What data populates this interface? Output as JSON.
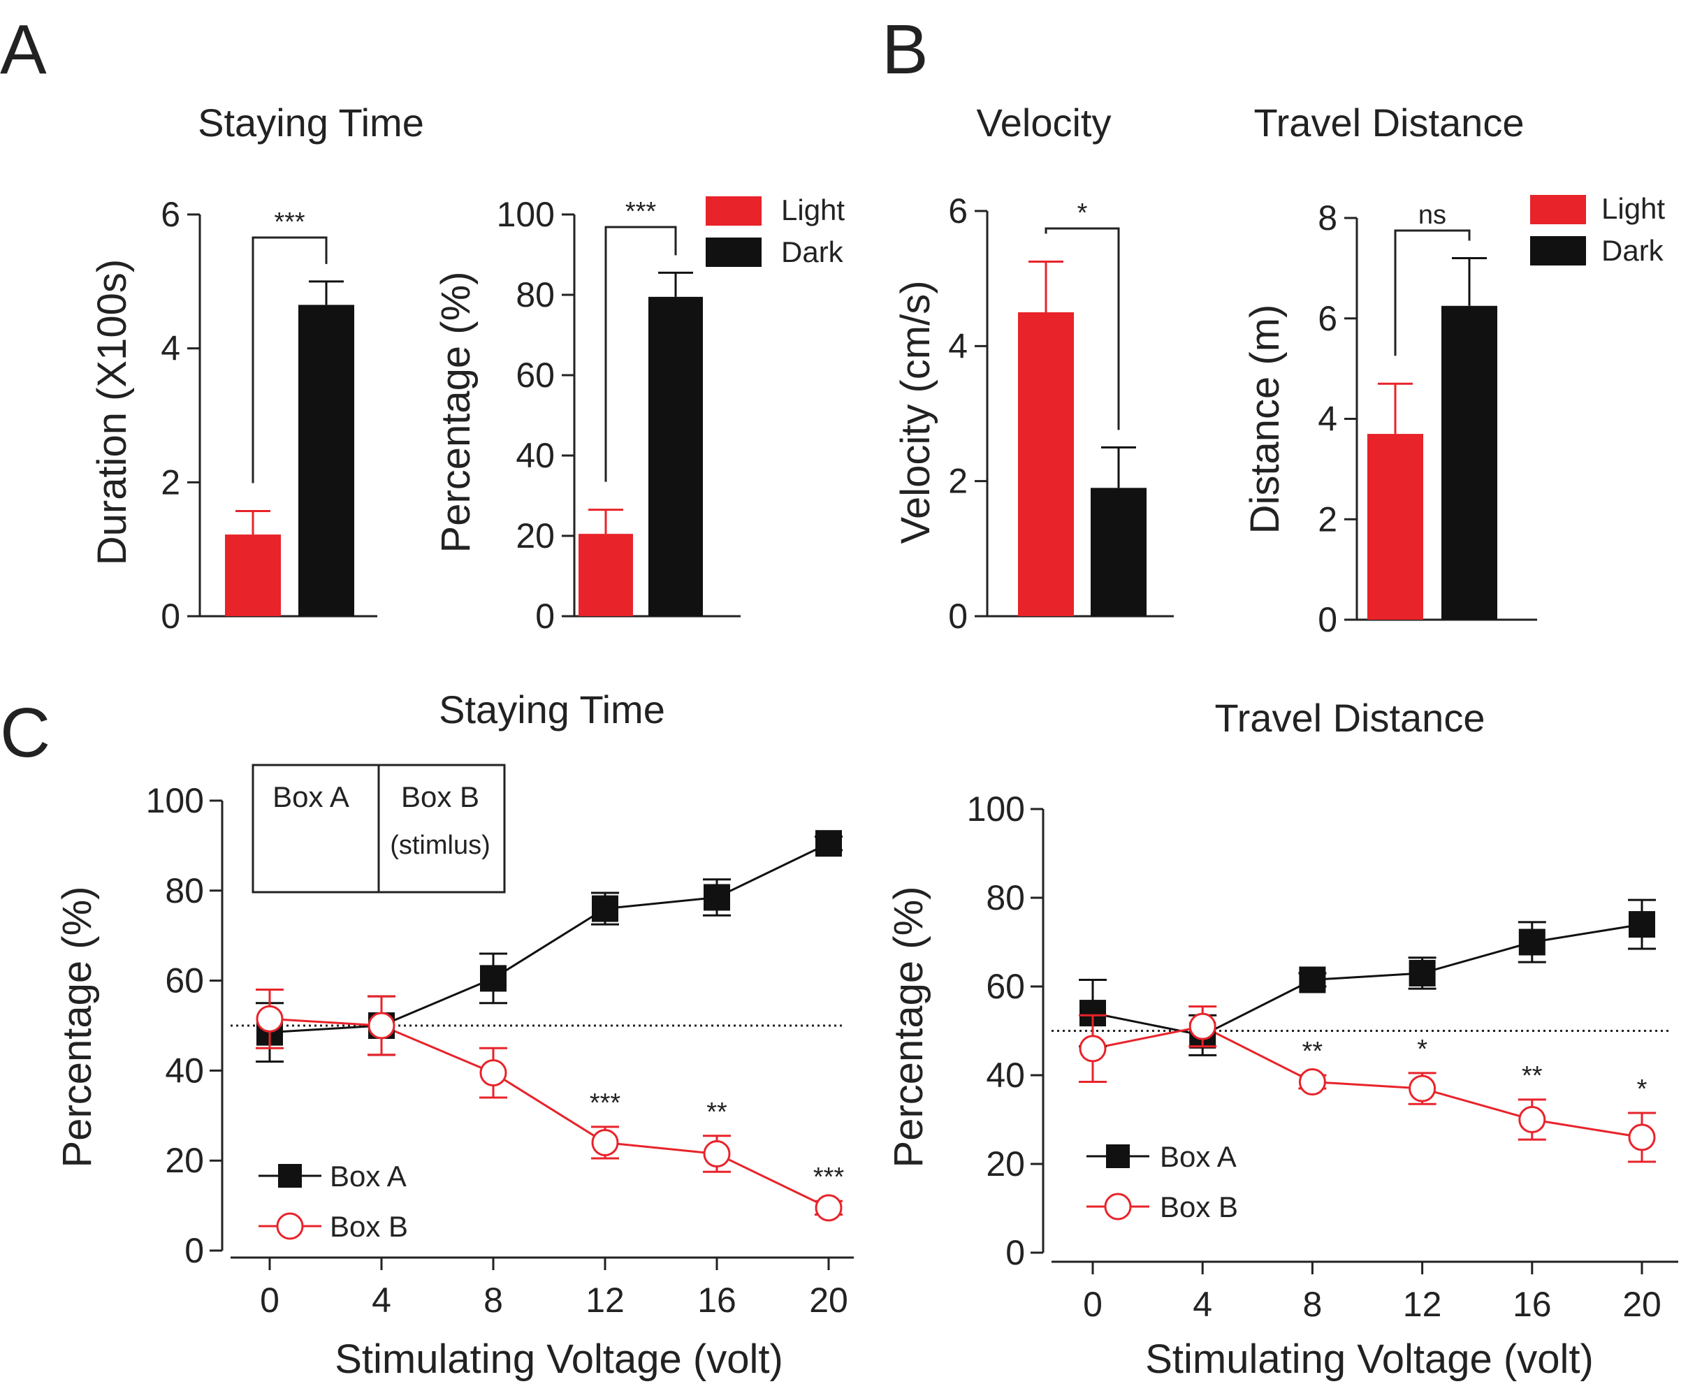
{
  "panels": {
    "A": {
      "letter": "A",
      "title": "Staying Time"
    },
    "B": {
      "letter": "B",
      "titles": [
        "Velocity",
        "Travel Distance"
      ]
    },
    "C": {
      "letter": "C"
    }
  },
  "colors": {
    "light": "#e8232a",
    "dark": "#111111",
    "axis": "#222222"
  },
  "legend_bars": [
    "Light",
    "Dark"
  ],
  "legend_lines": [
    "Box A",
    "Box B"
  ],
  "inset_diagram": {
    "box_a": "Box A",
    "box_b": "Box B",
    "box_b_note": "(stimlus)"
  },
  "chart_data": [
    {
      "type": "bar",
      "panel": "A",
      "ylabel": "Duration (X100s)",
      "ylim": [
        0,
        6
      ],
      "yticks": [
        0,
        2,
        4,
        6
      ],
      "categories": [
        "Light",
        "Dark"
      ],
      "values": [
        1.22,
        4.65
      ],
      "errors": [
        0.35,
        0.35
      ],
      "significance": "***"
    },
    {
      "type": "bar",
      "panel": "A",
      "ylabel": "Percentage (%)",
      "ylim": [
        0,
        100
      ],
      "yticks": [
        0,
        20,
        40,
        60,
        80,
        100
      ],
      "categories": [
        "Light",
        "Dark"
      ],
      "values": [
        20.5,
        79.5
      ],
      "errors": [
        6,
        6
      ],
      "significance": "***"
    },
    {
      "type": "bar",
      "panel": "B",
      "ylabel": "Velocity (cm/s)",
      "ylim": [
        0,
        6
      ],
      "yticks": [
        0,
        2,
        4,
        6
      ],
      "categories": [
        "Light",
        "Dark"
      ],
      "values": [
        4.5,
        1.9
      ],
      "errors": [
        0.75,
        0.6
      ],
      "significance": "*"
    },
    {
      "type": "bar",
      "panel": "B",
      "ylabel": "Distance (m)",
      "ylim": [
        0,
        8
      ],
      "yticks": [
        0,
        2,
        4,
        6,
        8
      ],
      "categories": [
        "Light",
        "Dark"
      ],
      "values": [
        3.7,
        6.25
      ],
      "errors": [
        1.0,
        0.95
      ],
      "significance": "ns"
    },
    {
      "type": "line",
      "panel": "C",
      "title": "Staying Time",
      "xlabel": "Stimulating Voltage (volt)",
      "ylabel": "Percentage (%)",
      "ylim": [
        0,
        100
      ],
      "yticks": [
        0,
        20,
        40,
        60,
        80,
        100
      ],
      "x": [
        0,
        4,
        8,
        12,
        16,
        20
      ],
      "reference_y": 50,
      "series": [
        {
          "name": "Box A",
          "values": [
            48.5,
            50,
            60.5,
            76,
            78.5,
            90.5
          ],
          "errors": [
            6.5,
            6.5,
            5.5,
            3.5,
            4.0,
            1.5
          ]
        },
        {
          "name": "Box B",
          "values": [
            51.5,
            50,
            39.5,
            24,
            21.5,
            9.5
          ],
          "errors": [
            6.5,
            6.5,
            5.5,
            3.5,
            4.0,
            1.5
          ]
        }
      ],
      "significance": [
        "",
        "",
        "",
        "***",
        "**",
        "***"
      ]
    },
    {
      "type": "line",
      "panel": "C",
      "title": "Travel Distance",
      "xlabel": "Stimulating Voltage (volt)",
      "ylabel": "Percentage (%)",
      "ylim": [
        0,
        100
      ],
      "yticks": [
        0,
        20,
        40,
        60,
        80,
        100
      ],
      "x": [
        0,
        4,
        8,
        12,
        16,
        20
      ],
      "reference_y": 50,
      "series": [
        {
          "name": "Box A",
          "values": [
            54,
            49,
            61.5,
            63,
            70,
            74
          ],
          "errors": [
            7.5,
            4.5,
            1.5,
            3.5,
            4.5,
            5.5
          ]
        },
        {
          "name": "Box B",
          "values": [
            46,
            51,
            38.5,
            37,
            30,
            26
          ],
          "errors": [
            7.5,
            4.5,
            1.5,
            3.5,
            4.5,
            5.5
          ]
        }
      ],
      "significance": [
        "",
        "",
        "**",
        "*",
        "**",
        "*"
      ]
    }
  ]
}
